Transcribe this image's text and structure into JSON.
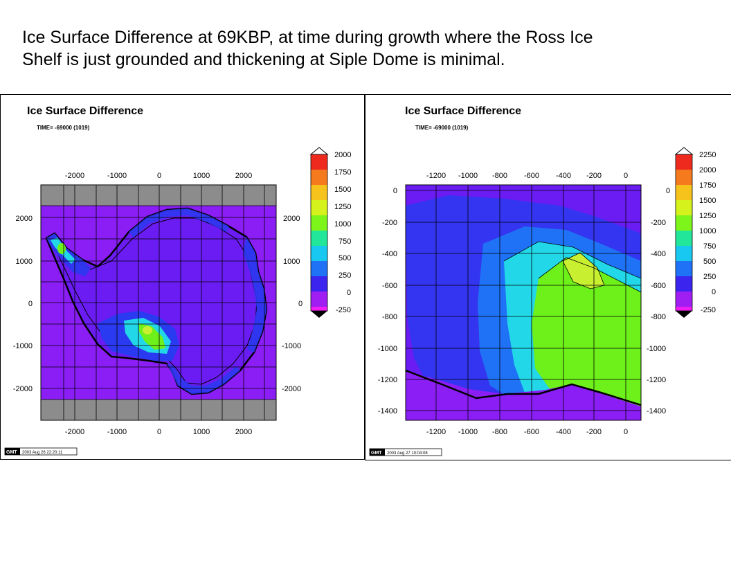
{
  "slide": {
    "title_line1": "Ice Surface Difference at 69KBP, at time during growth where the Ross Ice",
    "title_line2": "Shelf is just grounded and thickening at Siple Dome is minimal."
  },
  "panels": [
    {
      "title": "Ice Surface Difference",
      "time_label": "TIME= -69000 (1019)",
      "x_ticks": [
        "-2000",
        "-1000",
        "0",
        "1000",
        "2000"
      ],
      "y_ticks": [
        "2000",
        "1000",
        "0",
        "-1000",
        "-2000"
      ],
      "colorbar_labels": [
        "2000",
        "1750",
        "1500",
        "1250",
        "1000",
        "750",
        "500",
        "250",
        "0",
        "-250"
      ],
      "colorbar_colors": [
        "#ee2a1e",
        "#f57a1e",
        "#f6c21c",
        "#d6f21c",
        "#7df41a",
        "#22e79a",
        "#18c8f0",
        "#1f72f5",
        "#3a24ee",
        "#a01ef2",
        "#f01ef2"
      ],
      "gmt_stamp": "2003 Aug 26 22:20:11"
    },
    {
      "title": "Ice Surface Difference",
      "time_label": "TIME= -69000 (1019)",
      "x_ticks": [
        "-1200",
        "-1000",
        "-800",
        "-600",
        "-400",
        "-200",
        "0"
      ],
      "y_ticks": [
        "0",
        "-200",
        "-400",
        "-600",
        "-800",
        "-1000",
        "-1200",
        "-1400"
      ],
      "colorbar_labels": [
        "2250",
        "2000",
        "1750",
        "1500",
        "1250",
        "1000",
        "750",
        "500",
        "250",
        "0",
        "-250"
      ],
      "colorbar_colors": [
        "#ee2a1e",
        "#f57a1e",
        "#f6c21c",
        "#d6f21c",
        "#7df41a",
        "#22e79a",
        "#18c8f0",
        "#1f72f5",
        "#3a24ee",
        "#a01ef2",
        "#f01ef2"
      ],
      "gmt_stamp": "2003 Aug 27 10:04:08"
    }
  ],
  "gmt_logo": "GMT",
  "colors": {
    "ocean": "#8a1ef5",
    "ice_base": "#6a1cf2",
    "deep_blue": "#2a3af0",
    "cyan": "#22d8e8",
    "green": "#6ef01a",
    "yellow_green": "#c8f030",
    "grey_band": "#8c8c8c"
  }
}
